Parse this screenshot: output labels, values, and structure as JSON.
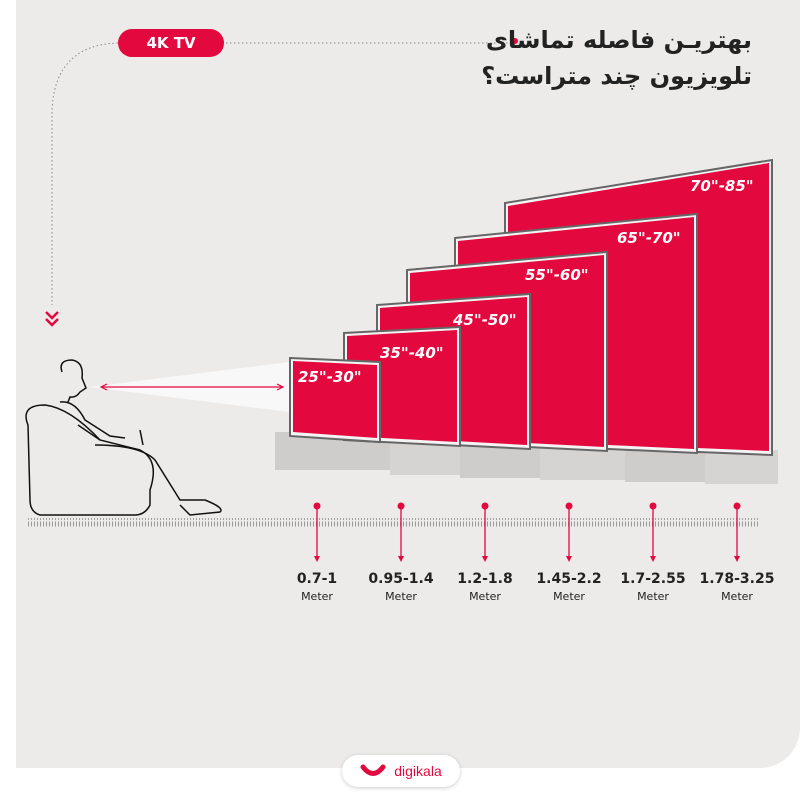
{
  "badge": "4K TV",
  "title_line1": "بهتریـن فاصله تماشای",
  "title_line2": "تلویزیون چند متراست؟",
  "accent_color": "#e3093e",
  "tvs": [
    {
      "size": "25\"-30\"",
      "distance": "0.7-1",
      "unit": "Meter"
    },
    {
      "size": "35\"-40\"",
      "distance": "0.95-1.4",
      "unit": "Meter"
    },
    {
      "size": "45\"-50\"",
      "distance": "1.2-1.8",
      "unit": "Meter"
    },
    {
      "size": "55\"-60\"",
      "distance": "1.45-2.2",
      "unit": "Meter"
    },
    {
      "size": "65\"-70\"",
      "distance": "1.7-2.55",
      "unit": "Meter"
    },
    {
      "size": "70\"-85\"",
      "distance": "1.78-3.25",
      "unit": "Meter"
    }
  ],
  "logo": {
    "text": "digikala"
  }
}
